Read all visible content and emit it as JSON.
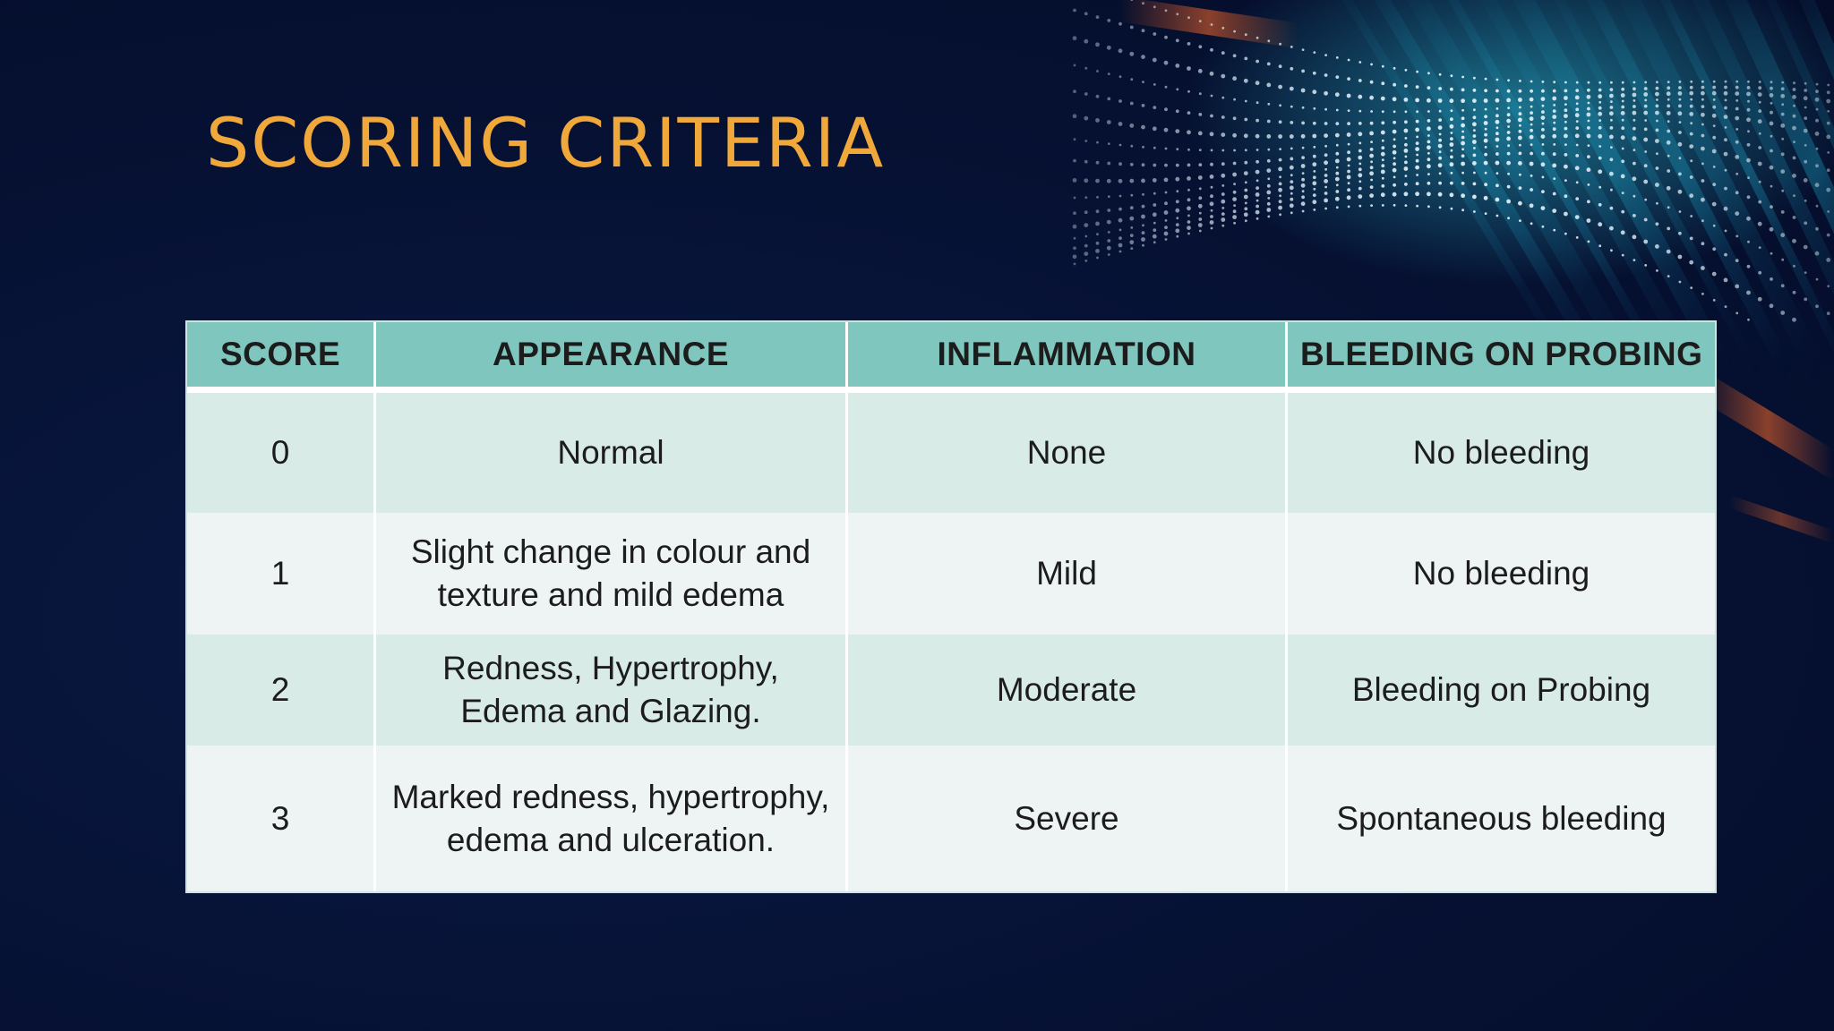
{
  "slide": {
    "title": "SCORING CRITERIA",
    "title_color": "#f0a83a",
    "background_color": "#061133"
  },
  "table": {
    "header_color": "#7fc6be",
    "headers": [
      "SCORE",
      "APPEARANCE",
      "INFLAMMATION",
      "BLEEDING ON PROBING"
    ],
    "rows": [
      [
        "0",
        "Normal",
        "None",
        "No bleeding"
      ],
      [
        "1",
        "Slight change in colour and texture and mild edema",
        "Mild",
        "No bleeding"
      ],
      [
        "2",
        "Redness, Hypertrophy, Edema and Glazing.",
        "Moderate",
        "Bleeding on Probing"
      ],
      [
        "3",
        "Marked redness, hypertrophy, edema and ulceration.",
        "Severe",
        "Spontaneous bleeding"
      ]
    ]
  }
}
